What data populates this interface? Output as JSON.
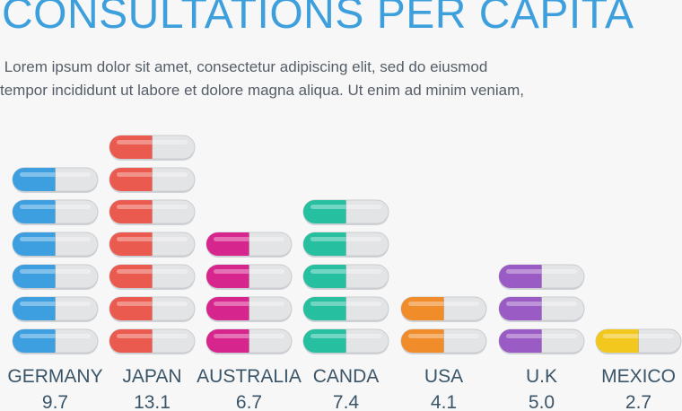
{
  "title": "CONSULTATIONS PER CAPITA",
  "subtitle_lines": [
    " Lorem ipsum dolor sit amet, consectetur adipiscing elit, sed do eiusmod",
    "tempor incididunt ut labore et dolore magna aliqua. Ut enim ad minim veniam,"
  ],
  "chart_data": {
    "type": "bar",
    "categories": [
      "GERMANY",
      "JAPAN",
      "AUSTRALIA",
      "CANDA",
      "USA",
      "U.K",
      "MEXICO"
    ],
    "values": [
      9.7,
      13.1,
      6.7,
      7.4,
      4.1,
      5.0,
      2.7
    ],
    "value_labels": [
      "9.7",
      "13.1",
      "6.7",
      "7.4",
      "4.1",
      "5.0",
      "2.7"
    ],
    "pill_counts": [
      6,
      7,
      4,
      5,
      2,
      3,
      1
    ],
    "colors": [
      "#3d9ee0",
      "#ea5a4e",
      "#d6268d",
      "#26bfa0",
      "#f08c2a",
      "#9b5bc4",
      "#f2c81e"
    ]
  }
}
